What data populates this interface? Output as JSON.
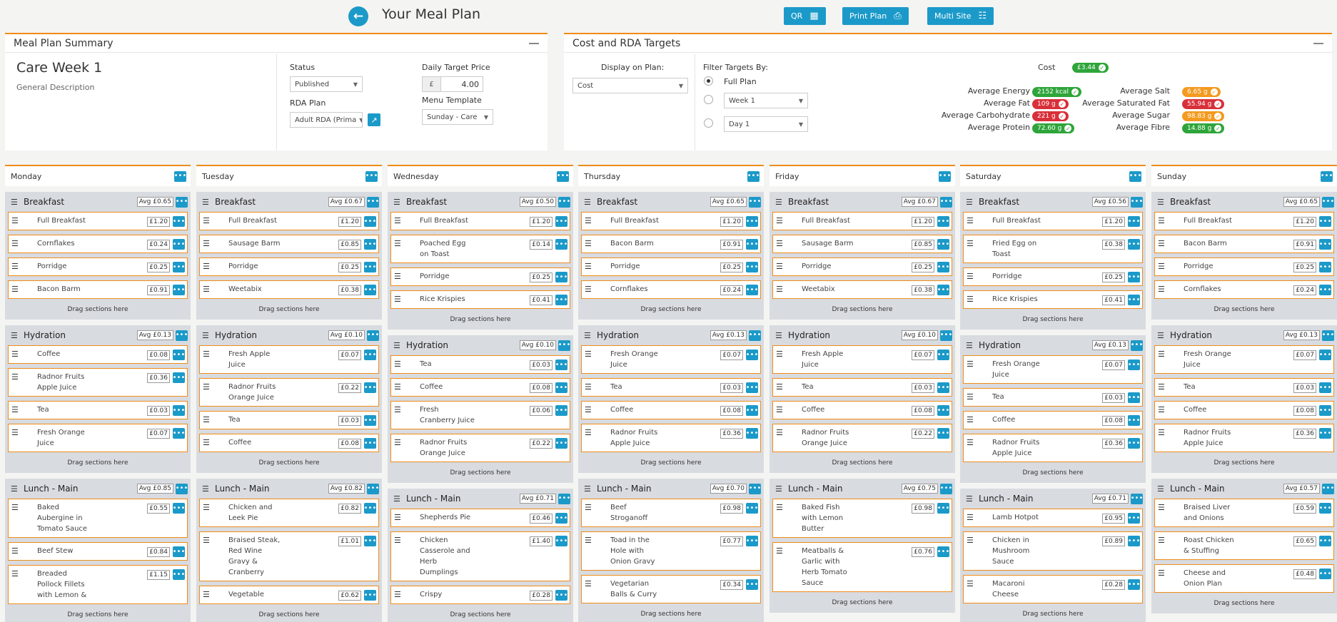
{
  "header": {
    "title": "Your Meal Plan",
    "qr_label": "QR",
    "print_label": "Print Plan",
    "multisite_label": "Multi Site"
  },
  "summary": {
    "panel_title": "Meal Plan Summary",
    "plan_name": "Care Week 1",
    "description": "General Description",
    "status_label": "Status",
    "status_value": "Published",
    "rda_label": "RDA Plan",
    "rda_value": "Adult RDA (Prima",
    "price_label": "Daily Target Price",
    "currency": "£",
    "price_value": "4.00",
    "template_label": "Menu Template",
    "template_value": "Sunday - Care"
  },
  "targets": {
    "panel_title": "Cost and RDA Targets",
    "display_label": "Display on Plan:",
    "display_value": "Cost",
    "filter_label": "Filter Targets By:",
    "full_plan_label": "Full Plan",
    "week_value": "Week 1",
    "day_value": "Day 1",
    "cost_label": "Cost",
    "cost_value": "£3.44",
    "left": [
      {
        "label": "Average Energy",
        "value": "2152 kcal",
        "color": "green"
      },
      {
        "label": "Average Fat",
        "value": "109 g",
        "color": "red"
      },
      {
        "label": "Average Carbohydrate",
        "value": "221 g",
        "color": "red"
      },
      {
        "label": "Average Protein",
        "value": "72.60 g",
        "color": "green"
      }
    ],
    "right": [
      {
        "label": "Average Salt",
        "value": "6.65 g",
        "color": "orange"
      },
      {
        "label": "Average Saturated Fat",
        "value": "55.94 g",
        "color": "red"
      },
      {
        "label": "Average Sugar",
        "value": "98.83 g",
        "color": "orange"
      },
      {
        "label": "Average Fibre",
        "value": "14.88 g",
        "color": "green"
      }
    ]
  },
  "avg_label": "Avg",
  "drag_label": "Drag sections here",
  "days": [
    {
      "name": "Monday",
      "sections": [
        {
          "title": "Breakfast",
          "avg": "£0.65",
          "items": [
            [
              "Full Breakfast",
              "£1.20"
            ],
            [
              "Cornflakes",
              "£0.24"
            ],
            [
              "Porridge",
              "£0.25"
            ],
            [
              "Bacon Barm",
              "£0.91"
            ]
          ]
        },
        {
          "title": "Hydration",
          "avg": "£0.13",
          "items": [
            [
              "Coffee",
              "£0.08"
            ],
            [
              "Radnor Fruits\nApple Juice",
              "£0.36"
            ],
            [
              "Tea",
              "£0.03"
            ],
            [
              "Fresh Orange\nJuice",
              "£0.07"
            ]
          ]
        },
        {
          "title": "Lunch - Main",
          "avg": "£0.85",
          "items": [
            [
              "Baked\nAubergine in\nTomato Sauce",
              "£0.55"
            ],
            [
              "Beef Stew",
              "£0.84"
            ],
            [
              "Breaded\nPollock Fillets\nwith Lemon &",
              "£1.15"
            ]
          ]
        }
      ]
    },
    {
      "name": "Tuesday",
      "sections": [
        {
          "title": "Breakfast",
          "avg": "£0.67",
          "items": [
            [
              "Full Breakfast",
              "£1.20"
            ],
            [
              "Sausage Barm",
              "£0.85"
            ],
            [
              "Porridge",
              "£0.25"
            ],
            [
              "Weetabix",
              "£0.38"
            ]
          ]
        },
        {
          "title": "Hydration",
          "avg": "£0.10",
          "items": [
            [
              "Fresh Apple\nJuice",
              "£0.07"
            ],
            [
              "Radnor Fruits\nOrange Juice",
              "£0.22"
            ],
            [
              "Tea",
              "£0.03"
            ],
            [
              "Coffee",
              "£0.08"
            ]
          ]
        },
        {
          "title": "Lunch - Main",
          "avg": "£0.82",
          "items": [
            [
              "Chicken and\nLeek Pie",
              "£0.82"
            ],
            [
              "Braised Steak,\nRed Wine\nGravy &\nCranberry",
              "£1.01"
            ],
            [
              "Vegetable",
              "£0.62"
            ]
          ]
        }
      ]
    },
    {
      "name": "Wednesday",
      "sections": [
        {
          "title": "Breakfast",
          "avg": "£0.50",
          "items": [
            [
              "Full Breakfast",
              "£1.20"
            ],
            [
              "Poached Egg\non Toast",
              "£0.14"
            ],
            [
              "Porridge",
              "£0.25"
            ],
            [
              "Rice Krispies",
              "£0.41"
            ]
          ]
        },
        {
          "title": "Hydration",
          "avg": "£0.10",
          "items": [
            [
              "Tea",
              "£0.03"
            ],
            [
              "Coffee",
              "£0.08"
            ],
            [
              "Fresh\nCranberry Juice",
              "£0.06"
            ],
            [
              "Radnor Fruits\nOrange Juice",
              "£0.22"
            ]
          ]
        },
        {
          "title": "Lunch - Main",
          "avg": "£0.71",
          "items": [
            [
              "Shepherds Pie",
              "£0.46"
            ],
            [
              "Chicken\nCasserole and\nHerb\nDumplings",
              "£1.40"
            ],
            [
              "Crispy",
              "£0.28"
            ]
          ]
        }
      ]
    },
    {
      "name": "Thursday",
      "sections": [
        {
          "title": "Breakfast",
          "avg": "£0.65",
          "items": [
            [
              "Full Breakfast",
              "£1.20"
            ],
            [
              "Bacon Barm",
              "£0.91"
            ],
            [
              "Porridge",
              "£0.25"
            ],
            [
              "Cornflakes",
              "£0.24"
            ]
          ]
        },
        {
          "title": "Hydration",
          "avg": "£0.13",
          "items": [
            [
              "Fresh Orange\nJuice",
              "£0.07"
            ],
            [
              "Tea",
              "£0.03"
            ],
            [
              "Coffee",
              "£0.08"
            ],
            [
              "Radnor Fruits\nApple Juice",
              "£0.36"
            ]
          ]
        },
        {
          "title": "Lunch - Main",
          "avg": "£0.70",
          "items": [
            [
              "Beef\nStroganoff",
              "£0.98"
            ],
            [
              "Toad in the\nHole with\nOnion Gravy",
              "£0.77"
            ],
            [
              "Vegetarian\nBalls & Curry",
              "£0.34"
            ]
          ]
        }
      ]
    },
    {
      "name": "Friday",
      "sections": [
        {
          "title": "Breakfast",
          "avg": "£0.67",
          "items": [
            [
              "Full Breakfast",
              "£1.20"
            ],
            [
              "Sausage Barm",
              "£0.85"
            ],
            [
              "Porridge",
              "£0.25"
            ],
            [
              "Weetabix",
              "£0.38"
            ]
          ]
        },
        {
          "title": "Hydration",
          "avg": "£0.10",
          "items": [
            [
              "Fresh Apple\nJuice",
              "£0.07"
            ],
            [
              "Tea",
              "£0.03"
            ],
            [
              "Coffee",
              "£0.08"
            ],
            [
              "Radnor Fruits\nOrange Juice",
              "£0.22"
            ]
          ]
        },
        {
          "title": "Lunch - Main",
          "avg": "£0.75",
          "items": [
            [
              "Baked Fish\nwith Lemon\nButter",
              "£0.98"
            ],
            [
              "Meatballs &\nGarlic with\nHerb Tomato\nSauce",
              "£0.76"
            ]
          ]
        }
      ]
    },
    {
      "name": "Saturday",
      "sections": [
        {
          "title": "Breakfast",
          "avg": "£0.56",
          "items": [
            [
              "Full Breakfast",
              "£1.20"
            ],
            [
              "Fried Egg on\nToast",
              "£0.38"
            ],
            [
              "Porridge",
              "£0.25"
            ],
            [
              "Rice Krispies",
              "£0.41"
            ]
          ]
        },
        {
          "title": "Hydration",
          "avg": "£0.13",
          "items": [
            [
              "Fresh Orange\nJuice",
              "£0.07"
            ],
            [
              "Tea",
              "£0.03"
            ],
            [
              "Coffee",
              "£0.08"
            ],
            [
              "Radnor Fruits\nApple Juice",
              "£0.36"
            ]
          ]
        },
        {
          "title": "Lunch - Main",
          "avg": "£0.71",
          "items": [
            [
              "Lamb Hotpot",
              "£0.95"
            ],
            [
              "Chicken in\nMushroom\nSauce",
              "£0.89"
            ],
            [
              "Macaroni\nCheese",
              "£0.28"
            ]
          ]
        }
      ]
    },
    {
      "name": "Sunday",
      "sections": [
        {
          "title": "Breakfast",
          "avg": "£0.65",
          "items": [
            [
              "Full Breakfast",
              "£1.20"
            ],
            [
              "Bacon Barm",
              "£0.91"
            ],
            [
              "Porridge",
              "£0.25"
            ],
            [
              "Cornflakes",
              "£0.24"
            ]
          ]
        },
        {
          "title": "Hydration",
          "avg": "£0.13",
          "items": [
            [
              "Fresh Orange\nJuice",
              "£0.07"
            ],
            [
              "Tea",
              "£0.03"
            ],
            [
              "Coffee",
              "£0.08"
            ],
            [
              "Radnor Fruits\nApple Juice",
              "£0.36"
            ]
          ]
        },
        {
          "title": "Lunch - Main",
          "avg": "£0.57",
          "items": [
            [
              "Braised Liver\nand Onions",
              "£0.59"
            ],
            [
              "Roast Chicken\n& Stuffing",
              "£0.65"
            ],
            [
              "Cheese and\nOnion Plan",
              "£0.48"
            ]
          ]
        }
      ]
    }
  ]
}
